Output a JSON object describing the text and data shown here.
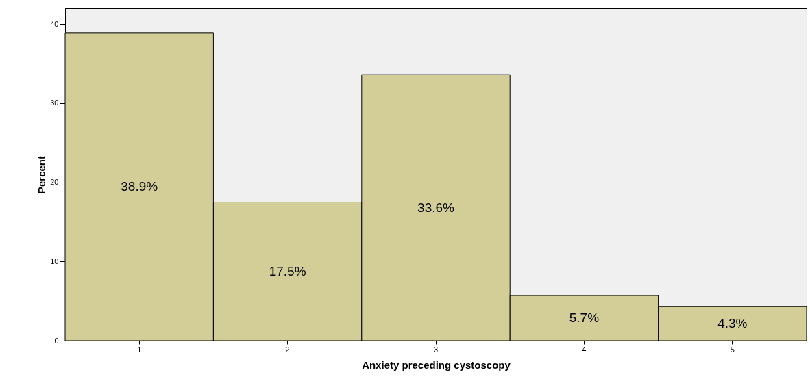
{
  "chart_data": {
    "type": "bar",
    "xlabel": "Anxiety preceding cystoscopy",
    "ylabel": "Percent",
    "categories": [
      "1",
      "2",
      "3",
      "4",
      "5"
    ],
    "values": [
      38.9,
      17.5,
      33.6,
      5.7,
      4.3
    ],
    "value_labels": [
      "38.9%",
      "17.5%",
      "33.6%",
      "5.7%",
      "4.3%"
    ],
    "color": "#d3ce97",
    "ylim": [
      0,
      42
    ],
    "yticks": [
      0,
      10,
      20,
      30,
      40
    ]
  }
}
